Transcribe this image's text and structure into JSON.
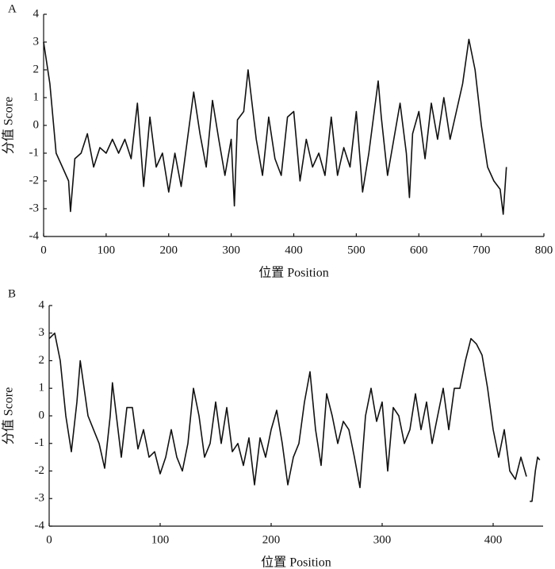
{
  "chart_data": [
    {
      "type": "line",
      "panel": "A",
      "xlabel": "位置 Position",
      "ylabel": "分值 Score",
      "color": "#111111",
      "x": [
        0,
        10,
        20,
        30,
        40,
        43,
        50,
        60,
        70,
        80,
        90,
        100,
        110,
        120,
        130,
        140,
        150,
        160,
        170,
        180,
        190,
        200,
        210,
        220,
        230,
        240,
        250,
        260,
        270,
        280,
        290,
        300,
        305,
        310,
        320,
        327,
        340,
        350,
        360,
        370,
        380,
        390,
        400,
        410,
        420,
        430,
        440,
        450,
        460,
        470,
        480,
        490,
        500,
        510,
        520,
        535,
        540,
        550,
        560,
        570,
        580,
        585,
        590,
        600,
        610,
        620,
        630,
        640,
        650,
        660,
        670,
        680,
        690,
        700,
        710,
        720,
        730,
        735,
        740
      ],
      "values": [
        3.0,
        1.5,
        -1.0,
        -1.5,
        -2.0,
        -3.1,
        -1.2,
        -1.0,
        -0.3,
        -1.5,
        -0.8,
        -1.0,
        -0.5,
        -1.0,
        -0.5,
        -1.2,
        0.8,
        -2.2,
        0.3,
        -1.5,
        -1.0,
        -2.4,
        -1.0,
        -2.2,
        -0.5,
        1.2,
        -0.3,
        -1.5,
        0.9,
        -0.5,
        -1.8,
        -0.5,
        -2.9,
        0.2,
        0.5,
        2.0,
        -0.5,
        -1.8,
        0.3,
        -1.2,
        -1.8,
        0.3,
        0.5,
        -2.0,
        -0.5,
        -1.5,
        -1.0,
        -1.8,
        0.3,
        -1.8,
        -0.8,
        -1.5,
        0.5,
        -2.4,
        -1.0,
        1.6,
        0.3,
        -1.8,
        -0.5,
        0.8,
        -1.0,
        -2.6,
        -0.3,
        0.5,
        -1.2,
        0.8,
        -0.5,
        1.0,
        -0.5,
        0.5,
        1.5,
        3.1,
        2.0,
        0.0,
        -1.5,
        -2.0,
        -2.3,
        -3.2,
        -1.5
      ],
      "xlim": [
        0,
        800
      ],
      "xticks": [
        0,
        100,
        200,
        300,
        400,
        500,
        600,
        700,
        800
      ],
      "ylim": [
        -4,
        4
      ],
      "yticks": [
        -4,
        -3,
        -2,
        -1,
        0,
        1,
        2,
        3,
        4
      ]
    },
    {
      "type": "line",
      "panel": "B",
      "xlabel": "位置 Position",
      "ylabel": "分值 Score",
      "color": "#111111",
      "x": [
        0,
        5,
        10,
        15,
        20,
        25,
        28,
        35,
        40,
        45,
        50,
        55,
        57,
        65,
        70,
        75,
        80,
        85,
        90,
        95,
        100,
        105,
        110,
        115,
        120,
        125,
        130,
        135,
        140,
        145,
        150,
        155,
        160,
        165,
        170,
        175,
        180,
        185,
        190,
        195,
        200,
        205,
        210,
        215,
        220,
        225,
        230,
        235,
        240,
        245,
        250,
        255,
        260,
        265,
        270,
        275,
        280,
        285,
        290,
        295,
        300,
        305,
        310,
        315,
        320,
        325,
        330,
        335,
        340,
        345,
        350,
        355,
        360,
        365,
        370,
        375,
        380,
        385,
        390,
        395,
        400,
        405,
        410,
        415,
        420,
        425,
        430,
        431,
        433,
        435,
        438,
        440,
        442
      ],
      "values": [
        2.8,
        3.0,
        2.0,
        0.0,
        -1.3,
        0.5,
        2.0,
        0.0,
        -0.5,
        -1.0,
        -1.9,
        0.0,
        1.2,
        -1.5,
        0.3,
        0.3,
        -1.2,
        -0.5,
        -1.5,
        -1.3,
        -2.1,
        -1.5,
        -0.5,
        -1.5,
        -2.0,
        -1.0,
        1.0,
        0.0,
        -1.5,
        -1.0,
        0.5,
        -1.0,
        0.3,
        -1.3,
        -1.0,
        -1.8,
        -0.8,
        -2.5,
        -0.8,
        -1.5,
        -0.5,
        0.2,
        -1.0,
        -2.5,
        -1.5,
        -1.0,
        0.5,
        1.6,
        -0.5,
        -1.8,
        0.8,
        0.0,
        -1.0,
        -0.2,
        -0.5,
        -1.5,
        -2.6,
        0.0,
        1.0,
        -0.2,
        0.5,
        -2.0,
        0.3,
        0.0,
        -1.0,
        -0.5,
        0.8,
        -0.5,
        0.5,
        -1.0,
        0.0,
        1.0,
        -0.5,
        1.0,
        1.0,
        2.0,
        2.8,
        2.6,
        2.2,
        1.0,
        -0.5,
        -1.5,
        -0.5,
        -2.0,
        -2.3,
        -1.5,
        -2.2,
        null,
        -3.1,
        -3.1,
        -2.0,
        -1.5,
        -1.6
      ],
      "xlim": [
        0,
        445
      ],
      "xticks": [
        0,
        100,
        200,
        300,
        400
      ],
      "ylim": [
        -4,
        4
      ],
      "yticks": [
        -4,
        -3,
        -2,
        -1,
        0,
        1,
        2,
        3,
        4
      ]
    }
  ]
}
